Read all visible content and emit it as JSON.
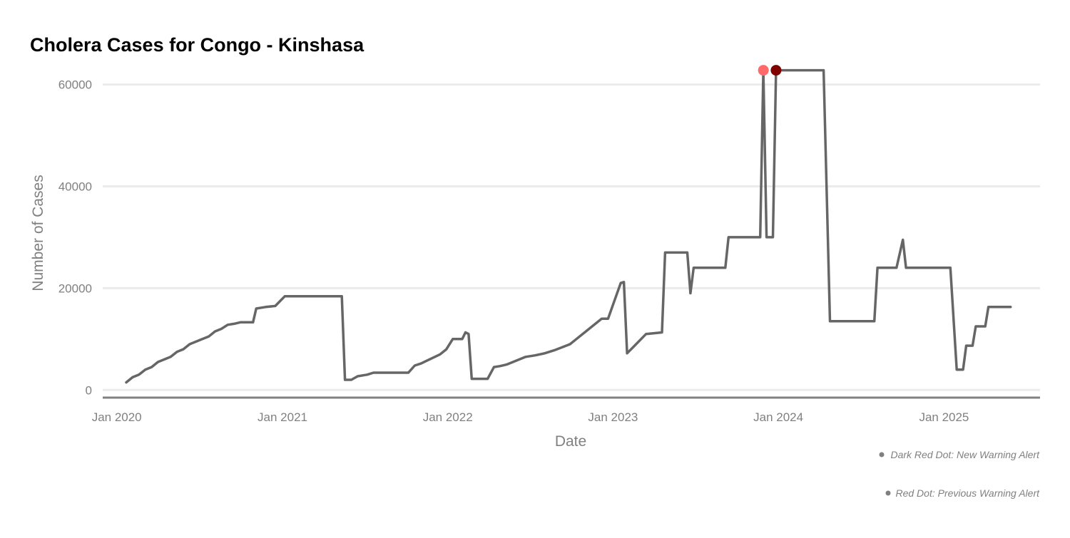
{
  "chart_data": {
    "type": "line",
    "title": "Cholera Cases for Congo - Kinshasa",
    "xlabel": "Date",
    "ylabel": "Number of Cases",
    "x_range": [
      "2019-12-01",
      "2025-08-01"
    ],
    "ylim": [
      -1500,
      64000
    ],
    "yticks": [
      0,
      20000,
      40000,
      60000
    ],
    "ytick_labels": [
      "0",
      "20000",
      "40000",
      "60000"
    ],
    "xticks": [
      "2020-01-01",
      "2021-01-01",
      "2022-01-01",
      "2023-01-01",
      "2024-01-01",
      "2025-01-01"
    ],
    "xtick_labels": [
      "Jan 2020",
      "Jan 2021",
      "Jan 2022",
      "Jan 2023",
      "Jan 2024",
      "Jan 2025"
    ],
    "grid": true,
    "series": [
      {
        "color": "#666666",
        "points": [
          [
            "2020-01-22",
            1500
          ],
          [
            "2020-02-05",
            2500
          ],
          [
            "2020-02-19",
            3000
          ],
          [
            "2020-03-04",
            4000
          ],
          [
            "2020-03-18",
            4500
          ],
          [
            "2020-04-01",
            5500
          ],
          [
            "2020-04-15",
            6000
          ],
          [
            "2020-04-29",
            6500
          ],
          [
            "2020-05-13",
            7500
          ],
          [
            "2020-05-27",
            8000
          ],
          [
            "2020-06-10",
            9000
          ],
          [
            "2020-06-24",
            9500
          ],
          [
            "2020-07-08",
            10000
          ],
          [
            "2020-07-22",
            10500
          ],
          [
            "2020-08-05",
            11500
          ],
          [
            "2020-08-19",
            12000
          ],
          [
            "2020-09-02",
            12800
          ],
          [
            "2020-09-16",
            13000
          ],
          [
            "2020-09-30",
            13300
          ],
          [
            "2020-10-28",
            13300
          ],
          [
            "2020-11-04",
            16000
          ],
          [
            "2020-11-25",
            16300
          ],
          [
            "2020-12-16",
            16500
          ],
          [
            "2021-01-06",
            18400
          ],
          [
            "2021-05-12",
            18400
          ],
          [
            "2021-05-19",
            2000
          ],
          [
            "2021-06-02",
            2000
          ],
          [
            "2021-06-16",
            2700
          ],
          [
            "2021-07-07",
            3000
          ],
          [
            "2021-07-21",
            3400
          ],
          [
            "2021-10-06",
            3400
          ],
          [
            "2021-10-20",
            4800
          ],
          [
            "2021-11-03",
            5200
          ],
          [
            "2021-11-17",
            5800
          ],
          [
            "2021-12-01",
            6400
          ],
          [
            "2021-12-15",
            7000
          ],
          [
            "2021-12-29",
            8000
          ],
          [
            "2022-01-12",
            10000
          ],
          [
            "2022-02-02",
            10000
          ],
          [
            "2022-02-09",
            11300
          ],
          [
            "2022-02-16",
            11000
          ],
          [
            "2022-02-23",
            2200
          ],
          [
            "2022-03-30",
            2200
          ],
          [
            "2022-04-13",
            4500
          ],
          [
            "2022-04-27",
            4700
          ],
          [
            "2022-05-11",
            5000
          ],
          [
            "2022-05-25",
            5500
          ],
          [
            "2022-06-08",
            6000
          ],
          [
            "2022-06-22",
            6500
          ],
          [
            "2022-07-13",
            6800
          ],
          [
            "2022-08-03",
            7200
          ],
          [
            "2022-08-24",
            7800
          ],
          [
            "2022-09-14",
            8500
          ],
          [
            "2022-09-28",
            9000
          ],
          [
            "2022-10-12",
            10000
          ],
          [
            "2022-11-02",
            11500
          ],
          [
            "2022-11-23",
            13000
          ],
          [
            "2022-12-07",
            14000
          ],
          [
            "2022-12-21",
            14000
          ],
          [
            "2023-01-04",
            17500
          ],
          [
            "2023-01-18",
            21000
          ],
          [
            "2023-01-25",
            21200
          ],
          [
            "2023-02-01",
            7200
          ],
          [
            "2023-03-15",
            11000
          ],
          [
            "2023-04-19",
            11300
          ],
          [
            "2023-04-26",
            27000
          ],
          [
            "2023-06-14",
            27000
          ],
          [
            "2023-06-21",
            19000
          ],
          [
            "2023-06-28",
            24000
          ],
          [
            "2023-09-06",
            24000
          ],
          [
            "2023-09-13",
            30000
          ],
          [
            "2023-11-22",
            30000
          ],
          [
            "2023-11-29",
            62800
          ],
          [
            "2023-12-06",
            30000
          ],
          [
            "2023-12-20",
            30000
          ],
          [
            "2023-12-27",
            62800
          ],
          [
            "2024-04-10",
            62800
          ],
          [
            "2024-04-24",
            13500
          ],
          [
            "2024-07-31",
            13500
          ],
          [
            "2024-08-07",
            24000
          ],
          [
            "2024-09-18",
            24000
          ],
          [
            "2024-10-02",
            29500
          ],
          [
            "2024-10-09",
            24000
          ],
          [
            "2025-01-15",
            24000
          ],
          [
            "2025-01-29",
            4000
          ],
          [
            "2025-02-12",
            4000
          ],
          [
            "2025-02-19",
            8700
          ],
          [
            "2025-03-05",
            8700
          ],
          [
            "2025-03-12",
            12500
          ],
          [
            "2025-04-02",
            12500
          ],
          [
            "2025-04-09",
            16300
          ],
          [
            "2025-05-28",
            16300
          ]
        ]
      }
    ],
    "markers": [
      {
        "date": "2023-11-29",
        "value": 62800,
        "color": "#ff6b6b"
      },
      {
        "date": "2023-12-27",
        "value": 62800,
        "color": "#800000"
      }
    ],
    "annotations": [
      "Dark Red Dot: New Warning Alert",
      "Red Dot: Previous Warning Alert"
    ],
    "annotation_bullet_color": "#808080"
  }
}
